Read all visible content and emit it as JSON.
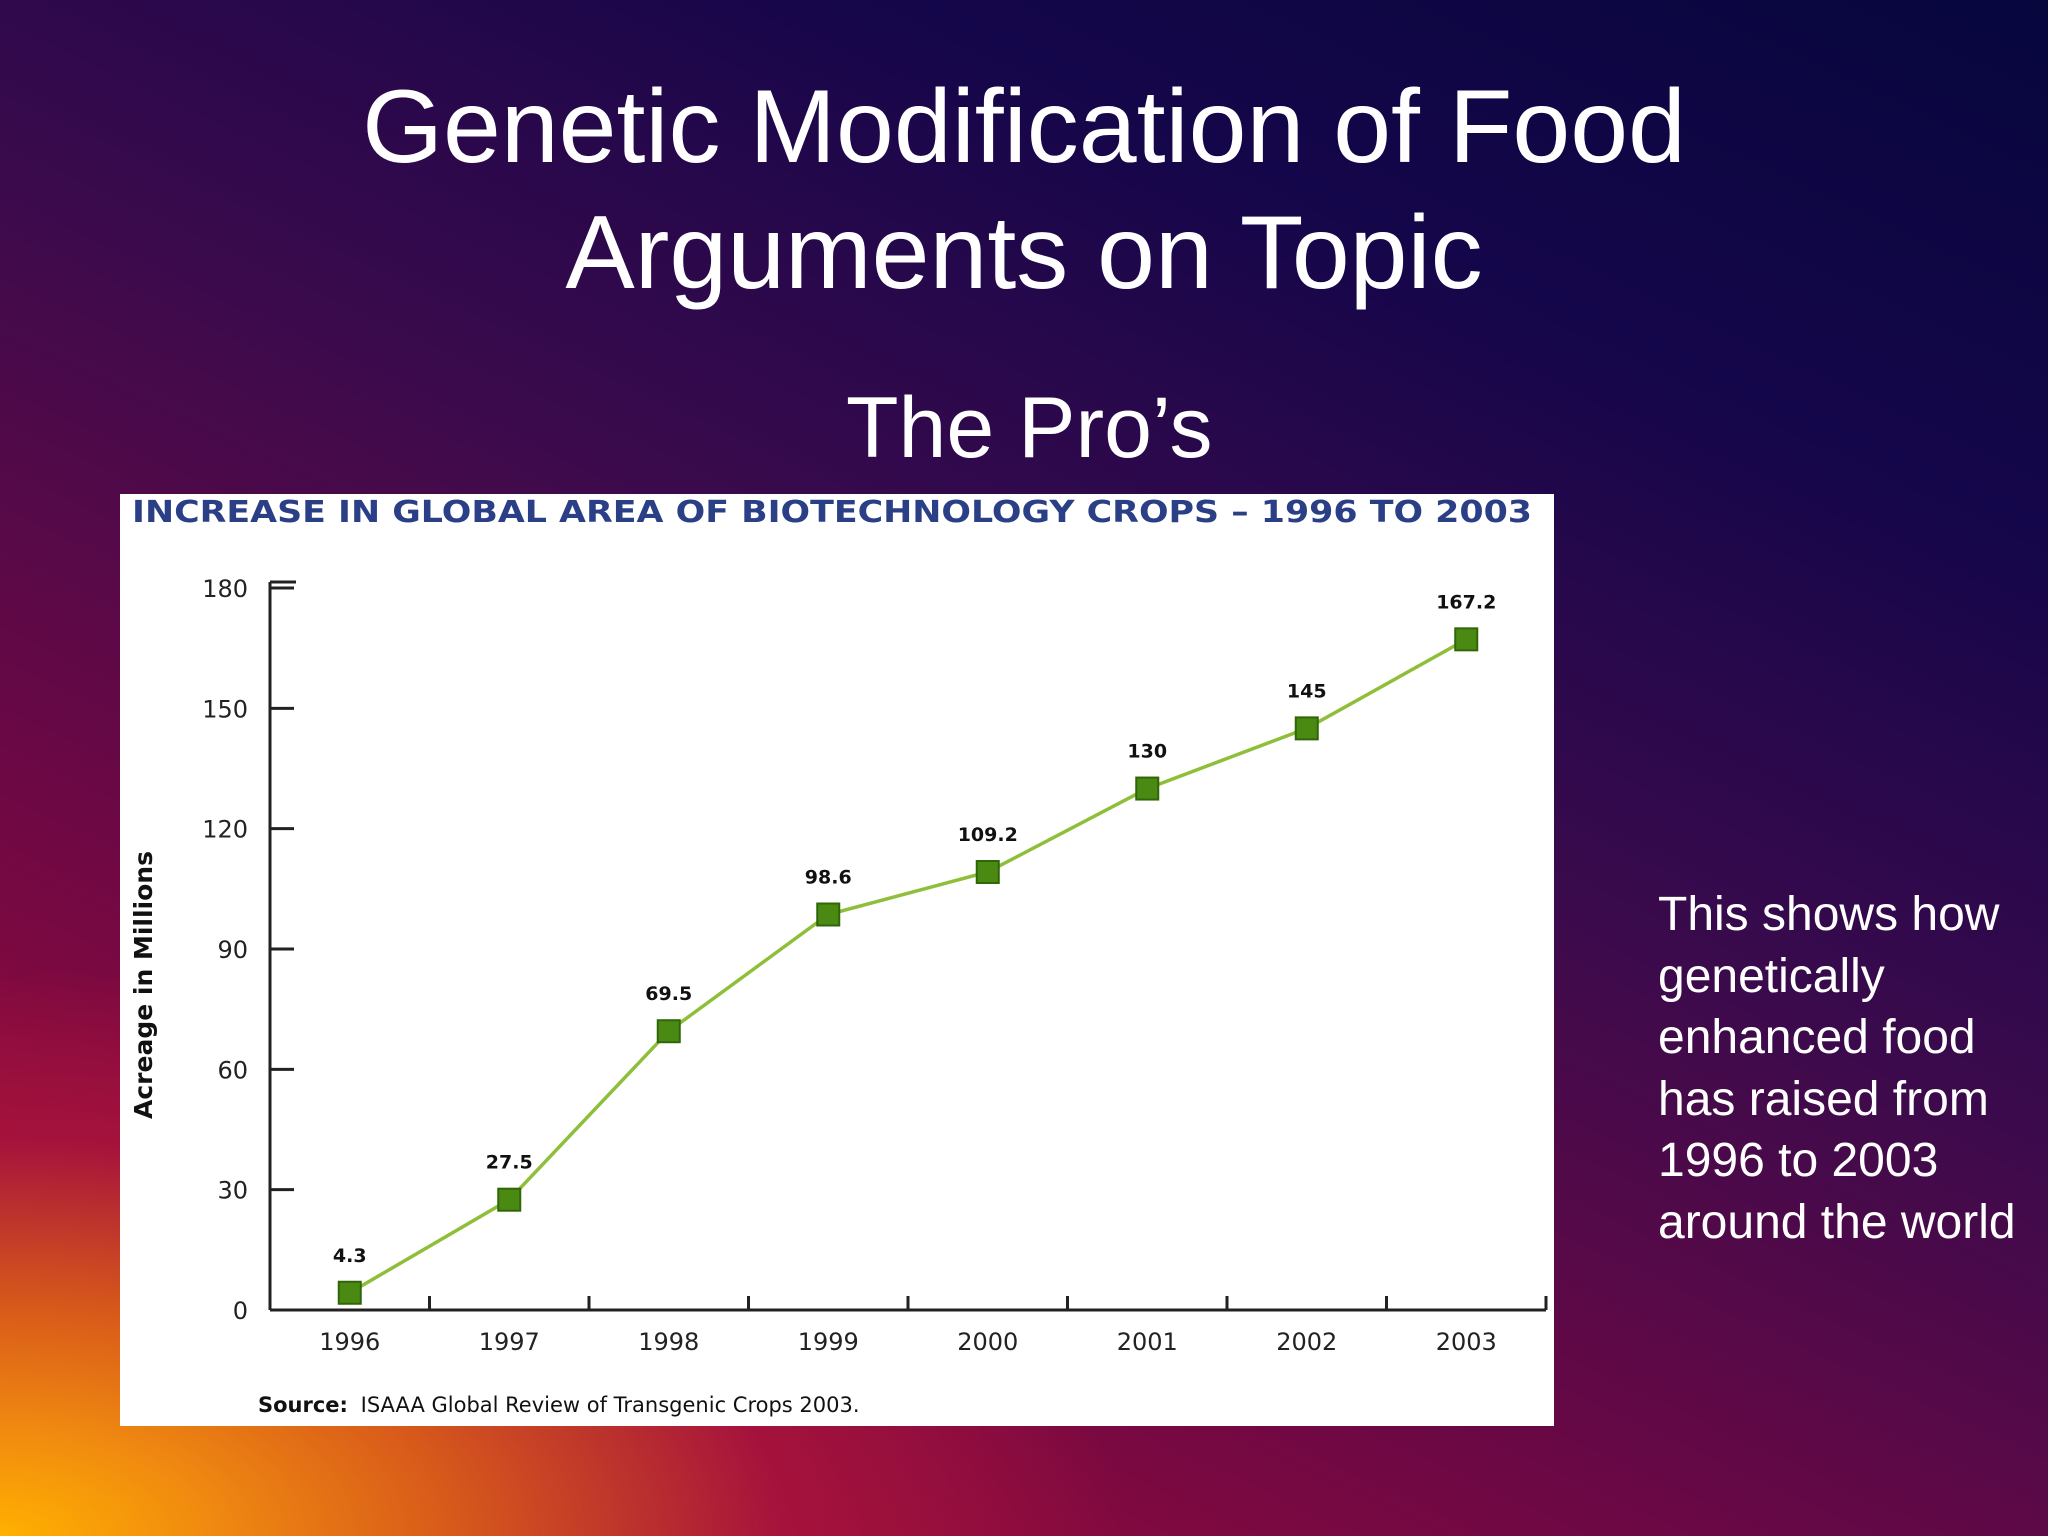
{
  "slide": {
    "title_line1": "Genetic Modification of Food",
    "title_line2": "Arguments on Topic",
    "subtitle": "The Pro’s",
    "note": "This shows how genetically enhanced food has raised from 1996 to 2003 around the world"
  },
  "chart_data": {
    "type": "line",
    "title": "INCREASE IN GLOBAL AREA OF BIOTECHNOLOGY CROPS – 1996 TO 2003",
    "ylabel": "Acreage in Millions",
    "xlabel": "",
    "categories": [
      "1996",
      "1997",
      "1998",
      "1999",
      "2000",
      "2001",
      "2002",
      "2003"
    ],
    "series": [
      {
        "values": [
          4.3,
          27.5,
          69.5,
          98.6,
          109.2,
          130,
          145,
          167.2
        ],
        "labels": [
          "4.3",
          "27.5",
          "69.5",
          "98.6",
          "109.2",
          "130",
          "145",
          "167.2"
        ]
      }
    ],
    "ylim": [
      0,
      180
    ],
    "yticks": [
      0,
      30,
      60,
      90,
      120,
      150,
      180
    ],
    "grid": false,
    "legend": "none",
    "source": "ISAAA Global Review of Transgenic Crops 2003.",
    "source_label": "Source:",
    "colors": {
      "line": "#8fbf3a",
      "marker": "#4a8a12",
      "marker_edge": "#2f6608",
      "title": "#2a3f85",
      "axis": "#222222"
    }
  }
}
